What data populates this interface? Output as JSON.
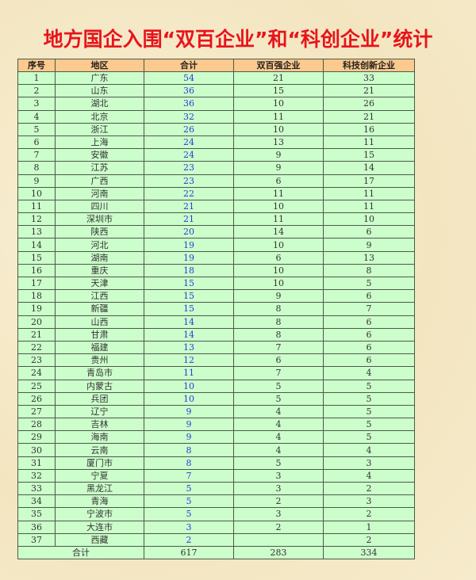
{
  "title": "地方国企入围“双百企业”和“科创企业”统计",
  "headers": [
    "序号",
    "地区",
    "合计",
    "双百强企业",
    "科技创新企业"
  ],
  "rows": [
    [
      "1",
      "广东",
      "54",
      "21",
      "33"
    ],
    [
      "2",
      "山东",
      "36",
      "15",
      "21"
    ],
    [
      "3",
      "湖北",
      "36",
      "10",
      "26"
    ],
    [
      "4",
      "北京",
      "32",
      "11",
      "21"
    ],
    [
      "5",
      "浙江",
      "26",
      "10",
      "16"
    ],
    [
      "6",
      "上海",
      "24",
      "13",
      "11"
    ],
    [
      "7",
      "安徽",
      "24",
      "9",
      "15"
    ],
    [
      "8",
      "江苏",
      "23",
      "9",
      "14"
    ],
    [
      "9",
      "广西",
      "23",
      "6",
      "17"
    ],
    [
      "10",
      "河南",
      "22",
      "11",
      "11"
    ],
    [
      "11",
      "四川",
      "21",
      "10",
      "11"
    ],
    [
      "12",
      "深圳市",
      "21",
      "11",
      "10"
    ],
    [
      "13",
      "陕西",
      "20",
      "14",
      "6"
    ],
    [
      "14",
      "河北",
      "19",
      "10",
      "9"
    ],
    [
      "15",
      "湖南",
      "19",
      "6",
      "13"
    ],
    [
      "16",
      "重庆",
      "18",
      "10",
      "8"
    ],
    [
      "17",
      "天津",
      "15",
      "10",
      "5"
    ],
    [
      "18",
      "江西",
      "15",
      "9",
      "6"
    ],
    [
      "19",
      "新疆",
      "15",
      "8",
      "7"
    ],
    [
      "20",
      "山西",
      "14",
      "8",
      "6"
    ],
    [
      "21",
      "甘肃",
      "14",
      "8",
      "6"
    ],
    [
      "22",
      "福建",
      "13",
      "7",
      "6"
    ],
    [
      "23",
      "贵州",
      "12",
      "6",
      "6"
    ],
    [
      "24",
      "青岛市",
      "11",
      "7",
      "4"
    ],
    [
      "25",
      "内蒙古",
      "10",
      "5",
      "5"
    ],
    [
      "26",
      "兵团",
      "10",
      "5",
      "5"
    ],
    [
      "27",
      "辽宁",
      "9",
      "4",
      "5"
    ],
    [
      "28",
      "吉林",
      "9",
      "4",
      "5"
    ],
    [
      "29",
      "海南",
      "9",
      "4",
      "5"
    ],
    [
      "30",
      "云南",
      "8",
      "4",
      "4"
    ],
    [
      "31",
      "厦门市",
      "8",
      "5",
      "3"
    ],
    [
      "32",
      "宁夏",
      "7",
      "3",
      "4"
    ],
    [
      "33",
      "黑龙江",
      "5",
      "3",
      "2"
    ],
    [
      "34",
      "青海",
      "5",
      "2",
      "3"
    ],
    [
      "35",
      "宁波市",
      "5",
      "3",
      "2"
    ],
    [
      "36",
      "大连市",
      "3",
      "2",
      "1"
    ],
    [
      "37",
      "西藏",
      "2",
      "",
      "2"
    ]
  ],
  "footer": {
    "label": "合计",
    "total": "617",
    "shuangbai": "283",
    "kechuang": "334"
  },
  "colors": {
    "title": "#e8141b",
    "header_bg": "#fcc98e",
    "row_bg": "#ccfecb",
    "total_text": "#2b3bdc",
    "background": "#f6ebcc"
  }
}
